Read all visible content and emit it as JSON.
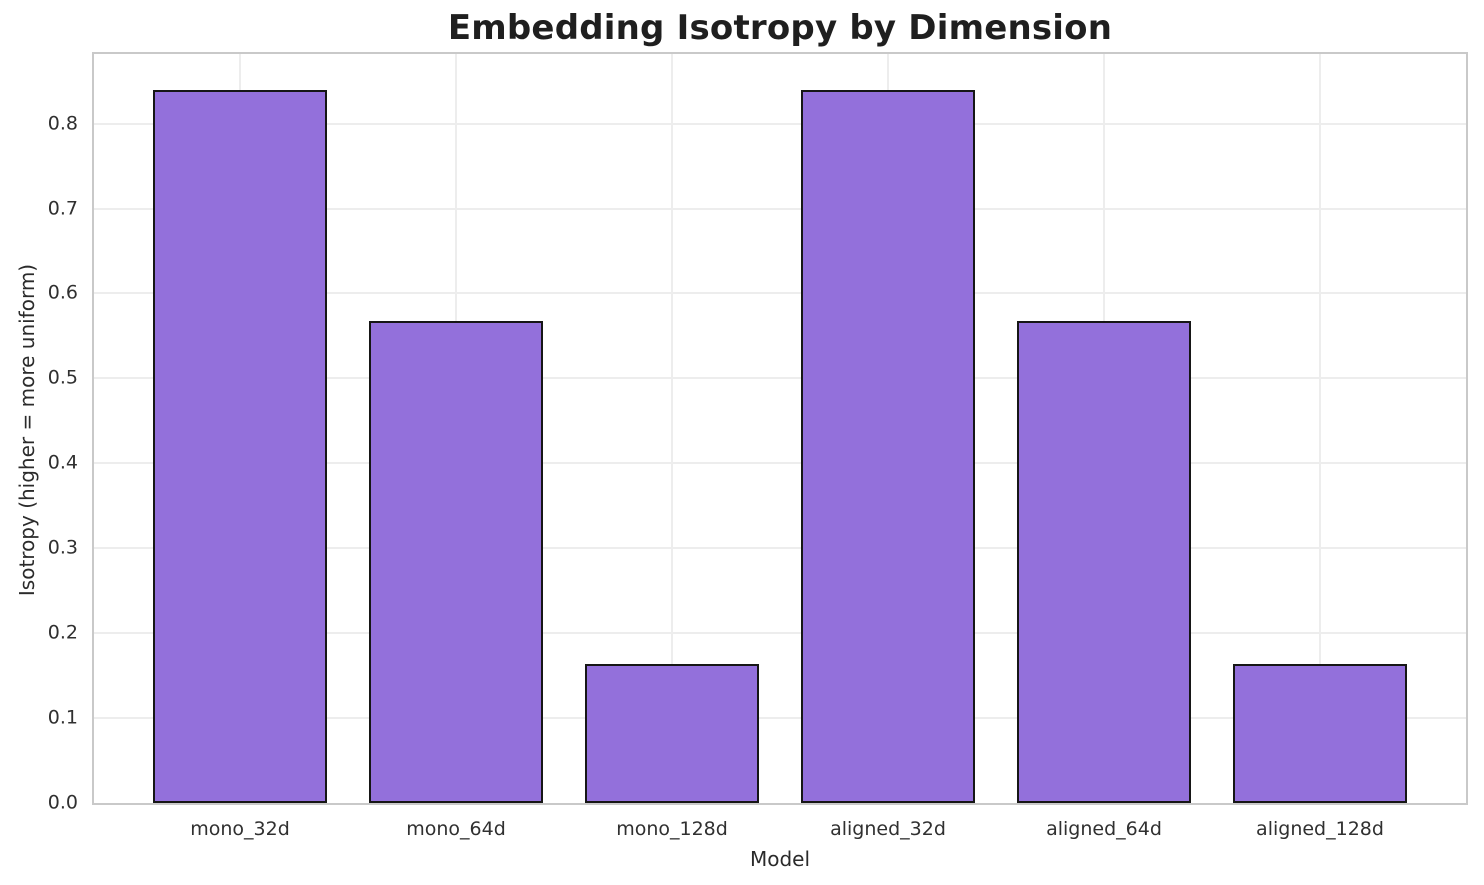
{
  "chart_data": {
    "type": "bar",
    "title": "Embedding Isotropy by Dimension",
    "xlabel": "Model",
    "ylabel": "Isotropy (higher = more uniform)",
    "categories": [
      "mono_32d",
      "mono_64d",
      "mono_128d",
      "aligned_32d",
      "aligned_64d",
      "aligned_128d"
    ],
    "values": [
      0.84,
      0.568,
      0.164,
      0.84,
      0.568,
      0.164
    ],
    "ylim": [
      0,
      0.882
    ],
    "yticks": [
      0.0,
      0.1,
      0.2,
      0.3,
      0.4,
      0.5,
      0.6,
      0.7,
      0.8
    ],
    "ytick_labels": [
      "0.0",
      "0.1",
      "0.2",
      "0.3",
      "0.4",
      "0.5",
      "0.6",
      "0.7",
      "0.8"
    ],
    "grid": true,
    "legend": false,
    "bar_color": "#9370DB",
    "bar_edge_color": "#161616",
    "grid_color": "#ededed",
    "spine_color": "#c9c9c9"
  }
}
